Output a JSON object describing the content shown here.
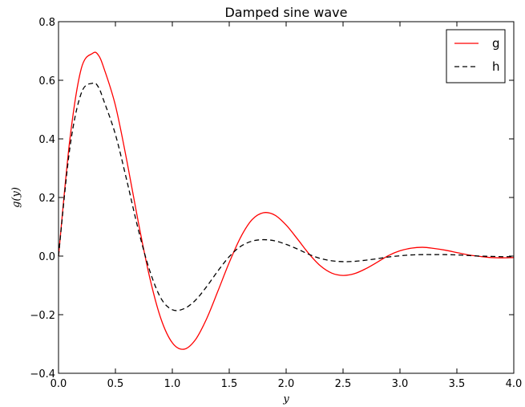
{
  "chart_data": {
    "type": "line",
    "title": "Damped sine wave",
    "xlabel": "y",
    "ylabel": "g(y)",
    "xlim": [
      0.0,
      4.0
    ],
    "ylim": [
      -0.4,
      0.8
    ],
    "x_ticks": [
      "0.0",
      "0.5",
      "1.0",
      "1.5",
      "2.0",
      "2.5",
      "3.0",
      "3.5",
      "4.0"
    ],
    "y_ticks": [
      "−0.4",
      "−0.2",
      "0.0",
      "0.2",
      "0.4",
      "0.6",
      "0.8"
    ],
    "grid": false,
    "legend_position": "top-right",
    "series": [
      {
        "name": "g",
        "color": "#ff0000",
        "line_style": "solid",
        "x": [
          0.0,
          0.1,
          0.2,
          0.3,
          0.35,
          0.4,
          0.5,
          0.6,
          0.7,
          0.8,
          0.9,
          1.0,
          1.1,
          1.2,
          1.3,
          1.4,
          1.5,
          1.6,
          1.7,
          1.8,
          1.9,
          2.0,
          2.1,
          2.2,
          2.3,
          2.4,
          2.5,
          2.6,
          2.7,
          2.8,
          2.9,
          3.0,
          3.1,
          3.2,
          3.3,
          3.4,
          3.5,
          3.6,
          3.7,
          3.8,
          3.9,
          4.0
        ],
        "y": [
          0.0,
          0.399,
          0.64,
          0.692,
          0.686,
          0.64,
          0.514,
          0.326,
          0.118,
          -0.071,
          -0.214,
          -0.296,
          -0.318,
          -0.287,
          -0.215,
          -0.12,
          -0.022,
          0.064,
          0.124,
          0.148,
          0.14,
          0.106,
          0.058,
          0.008,
          -0.033,
          -0.058,
          -0.066,
          -0.06,
          -0.043,
          -0.021,
          0.002,
          0.018,
          0.027,
          0.03,
          0.026,
          0.02,
          0.012,
          0.004,
          -0.001,
          -0.005,
          -0.006,
          -0.005
        ]
      },
      {
        "name": "h",
        "color": "#000000",
        "line_style": "dashed",
        "x": [
          0.0,
          0.1,
          0.2,
          0.3,
          0.35,
          0.4,
          0.5,
          0.6,
          0.7,
          0.8,
          0.9,
          1.0,
          1.1,
          1.2,
          1.3,
          1.4,
          1.5,
          1.6,
          1.7,
          1.8,
          1.9,
          2.0,
          2.1,
          2.2,
          2.3,
          2.4,
          2.5,
          2.6,
          2.7,
          2.8,
          2.9,
          3.0,
          3.1,
          3.2,
          3.3,
          3.4,
          3.5,
          3.6,
          3.7,
          3.8,
          3.9,
          4.0
        ],
        "y": [
          0.0,
          0.37,
          0.556,
          0.59,
          0.577,
          0.528,
          0.415,
          0.258,
          0.092,
          -0.048,
          -0.144,
          -0.183,
          -0.18,
          -0.152,
          -0.105,
          -0.051,
          -0.002,
          0.033,
          0.051,
          0.056,
          0.052,
          0.04,
          0.024,
          0.006,
          -0.008,
          -0.016,
          -0.019,
          -0.018,
          -0.014,
          -0.009,
          -0.003,
          0.001,
          0.004,
          0.005,
          0.005,
          0.005,
          0.004,
          0.002,
          0.0,
          -0.001,
          -0.002,
          -0.002
        ]
      }
    ]
  }
}
